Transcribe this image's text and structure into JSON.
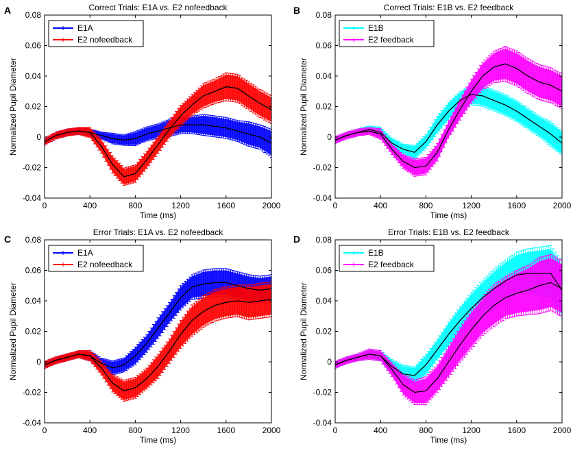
{
  "chart_data": [
    {
      "panel_label": "A",
      "type": "line",
      "title": "Correct Trials: E1A vs. E2 nofeedback",
      "xlabel": "Time (ms)",
      "ylabel": "Normalized Pupil Diameter",
      "xlim": [
        0,
        2000
      ],
      "ylim": [
        -0.04,
        0.08
      ],
      "xticks": [
        0,
        400,
        800,
        1200,
        1600,
        2000
      ],
      "xtick_labels": [
        "0",
        "400",
        "800",
        "1200",
        "1600",
        "2000"
      ],
      "yticks": [
        -0.04,
        -0.02,
        0,
        0.02,
        0.04,
        0.06,
        0.08
      ],
      "ytick_labels": [
        "-0.04",
        "-0.02",
        "0",
        "0.02",
        "0.04",
        "0.06",
        "0.08"
      ],
      "legend_position": "top-left",
      "x": [
        0,
        100,
        200,
        300,
        400,
        500,
        600,
        700,
        800,
        900,
        1000,
        1100,
        1200,
        1300,
        1400,
        1500,
        1600,
        1700,
        1800,
        1900,
        2000
      ],
      "series": [
        {
          "name": "E1A",
          "color": "#0000ff",
          "values": [
            -0.003,
            0.001,
            0.003,
            0.004,
            0.003,
            0.001,
            -0.001,
            -0.002,
            -0.001,
            0.002,
            0.004,
            0.006,
            0.008,
            0.008,
            0.008,
            0.007,
            0.006,
            0.004,
            0.002,
            0.0,
            -0.004
          ],
          "error": [
            0.002,
            0.002,
            0.002,
            0.002,
            0.002,
            0.002,
            0.003,
            0.003,
            0.004,
            0.004,
            0.004,
            0.005,
            0.005,
            0.005,
            0.006,
            0.006,
            0.006,
            0.006,
            0.007,
            0.007,
            0.008
          ]
        },
        {
          "name": "E2 nofeedback",
          "color": "#ff0000",
          "values": [
            -0.003,
            0.001,
            0.003,
            0.004,
            0.003,
            -0.006,
            -0.018,
            -0.026,
            -0.024,
            -0.015,
            -0.005,
            0.005,
            0.014,
            0.021,
            0.027,
            0.03,
            0.033,
            0.032,
            0.027,
            0.022,
            0.018
          ],
          "error": [
            0.002,
            0.002,
            0.002,
            0.002,
            0.003,
            0.004,
            0.005,
            0.005,
            0.005,
            0.005,
            0.005,
            0.005,
            0.006,
            0.006,
            0.007,
            0.007,
            0.008,
            0.008,
            0.008,
            0.008,
            0.008
          ]
        }
      ]
    },
    {
      "panel_label": "B",
      "type": "line",
      "title": "Correct Trials: E1B vs. E2 feedback",
      "xlabel": "Time (ms)",
      "ylabel": "Normalized Pupil Diameter",
      "xlim": [
        0,
        2000
      ],
      "ylim": [
        -0.04,
        0.08
      ],
      "xticks": [
        0,
        400,
        800,
        1200,
        1600,
        2000
      ],
      "xtick_labels": [
        "0",
        "400",
        "800",
        "1200",
        "1600",
        "2000"
      ],
      "yticks": [
        -0.04,
        -0.02,
        0,
        0.02,
        0.04,
        0.06,
        0.08
      ],
      "ytick_labels": [
        "-0.04",
        "-0.02",
        "0",
        "0.02",
        "0.04",
        "0.06",
        "0.08"
      ],
      "legend_position": "top-left",
      "x": [
        0,
        100,
        200,
        300,
        400,
        500,
        600,
        700,
        800,
        900,
        1000,
        1100,
        1200,
        1300,
        1400,
        1500,
        1600,
        1700,
        1800,
        1900,
        2000
      ],
      "series": [
        {
          "name": "E1B",
          "color": "#00ffff",
          "values": [
            -0.002,
            0.001,
            0.003,
            0.005,
            0.003,
            -0.004,
            -0.008,
            -0.01,
            -0.003,
            0.008,
            0.017,
            0.024,
            0.028,
            0.027,
            0.024,
            0.021,
            0.017,
            0.012,
            0.007,
            0.002,
            -0.004
          ],
          "error": [
            0.002,
            0.002,
            0.002,
            0.002,
            0.003,
            0.003,
            0.003,
            0.004,
            0.004,
            0.005,
            0.005,
            0.005,
            0.006,
            0.006,
            0.006,
            0.006,
            0.006,
            0.006,
            0.006,
            0.007,
            0.007
          ]
        },
        {
          "name": "E2 feedback",
          "color": "#ff00ff",
          "values": [
            -0.002,
            0.001,
            0.003,
            0.004,
            0.002,
            -0.008,
            -0.016,
            -0.02,
            -0.019,
            -0.01,
            0.005,
            0.018,
            0.03,
            0.04,
            0.046,
            0.048,
            0.045,
            0.04,
            0.036,
            0.034,
            0.03
          ],
          "error": [
            0.002,
            0.002,
            0.002,
            0.002,
            0.003,
            0.003,
            0.004,
            0.005,
            0.005,
            0.005,
            0.005,
            0.006,
            0.007,
            0.008,
            0.009,
            0.01,
            0.01,
            0.01,
            0.01,
            0.01,
            0.01
          ]
        }
      ]
    },
    {
      "panel_label": "C",
      "type": "line",
      "title": "Error Trials: E1A vs. E2 nofeedback",
      "xlabel": "Time (ms)",
      "ylabel": "Normalized Pupil Diameter",
      "xlim": [
        0,
        2000
      ],
      "ylim": [
        -0.04,
        0.08
      ],
      "xticks": [
        0,
        400,
        800,
        1200,
        1600,
        2000
      ],
      "xtick_labels": [
        "0",
        "400",
        "800",
        "1200",
        "1600",
        "2000"
      ],
      "yticks": [
        -0.04,
        -0.02,
        0,
        0.02,
        0.04,
        0.06,
        0.08
      ],
      "ytick_labels": [
        "-0.04",
        "-0.02",
        "0",
        "0.02",
        "0.04",
        "0.06",
        "0.08"
      ],
      "legend_position": "top-left",
      "x": [
        0,
        100,
        200,
        300,
        400,
        500,
        600,
        700,
        800,
        900,
        1000,
        1100,
        1200,
        1300,
        1400,
        1500,
        1600,
        1700,
        1800,
        1900,
        2000
      ],
      "series": [
        {
          "name": "E1A",
          "color": "#0000ff",
          "values": [
            -0.002,
            0.001,
            0.003,
            0.005,
            0.004,
            -0.001,
            -0.004,
            -0.002,
            0.004,
            0.012,
            0.022,
            0.032,
            0.042,
            0.049,
            0.051,
            0.052,
            0.052,
            0.05,
            0.048,
            0.047,
            0.048
          ],
          "error": [
            0.002,
            0.002,
            0.002,
            0.002,
            0.003,
            0.003,
            0.004,
            0.004,
            0.005,
            0.005,
            0.006,
            0.006,
            0.007,
            0.007,
            0.008,
            0.008,
            0.008,
            0.008,
            0.008,
            0.008,
            0.008
          ]
        },
        {
          "name": "E2 nofeedback",
          "color": "#ff0000",
          "values": [
            -0.002,
            0.001,
            0.003,
            0.005,
            0.004,
            -0.004,
            -0.014,
            -0.019,
            -0.017,
            -0.011,
            -0.003,
            0.007,
            0.018,
            0.027,
            0.033,
            0.037,
            0.039,
            0.04,
            0.039,
            0.04,
            0.041
          ],
          "error": [
            0.002,
            0.002,
            0.002,
            0.002,
            0.003,
            0.004,
            0.005,
            0.006,
            0.006,
            0.006,
            0.007,
            0.007,
            0.008,
            0.009,
            0.009,
            0.009,
            0.009,
            0.009,
            0.01,
            0.01,
            0.01
          ]
        }
      ]
    },
    {
      "panel_label": "D",
      "type": "line",
      "title": "Error Trials: E1B vs. E2 feedback",
      "xlabel": "Time (ms)",
      "ylabel": "Normalized Pupil Diameter",
      "xlim": [
        0,
        2000
      ],
      "ylim": [
        -0.04,
        0.08
      ],
      "xticks": [
        0,
        400,
        800,
        1200,
        1600,
        2000
      ],
      "xtick_labels": [
        "0",
        "400",
        "800",
        "1200",
        "1600",
        "2000"
      ],
      "yticks": [
        -0.04,
        -0.02,
        0,
        0.02,
        0.04,
        0.06,
        0.08
      ],
      "ytick_labels": [
        "-0.04",
        "-0.02",
        "0",
        "0.02",
        "0.04",
        "0.06",
        "0.08"
      ],
      "legend_position": "top-left",
      "x": [
        0,
        100,
        200,
        300,
        400,
        500,
        600,
        700,
        800,
        900,
        1000,
        1100,
        1200,
        1300,
        1400,
        1500,
        1600,
        1700,
        1800,
        1900,
        2000
      ],
      "series": [
        {
          "name": "E1B",
          "color": "#00ffff",
          "values": [
            -0.002,
            0.001,
            0.003,
            0.005,
            0.004,
            -0.003,
            -0.008,
            -0.009,
            -0.002,
            0.008,
            0.018,
            0.027,
            0.035,
            0.042,
            0.048,
            0.053,
            0.057,
            0.058,
            0.058,
            0.058,
            0.047
          ],
          "error": [
            0.002,
            0.002,
            0.002,
            0.003,
            0.003,
            0.004,
            0.005,
            0.005,
            0.006,
            0.006,
            0.007,
            0.008,
            0.009,
            0.01,
            0.011,
            0.012,
            0.013,
            0.014,
            0.015,
            0.016,
            0.016
          ]
        },
        {
          "name": "E2 feedback",
          "color": "#ff00ff",
          "values": [
            -0.002,
            0.001,
            0.003,
            0.005,
            0.004,
            -0.005,
            -0.015,
            -0.02,
            -0.019,
            -0.011,
            0.0,
            0.011,
            0.021,
            0.03,
            0.037,
            0.042,
            0.045,
            0.047,
            0.05,
            0.052,
            0.048
          ],
          "error": [
            0.002,
            0.002,
            0.002,
            0.003,
            0.003,
            0.004,
            0.006,
            0.007,
            0.008,
            0.008,
            0.009,
            0.01,
            0.011,
            0.011,
            0.012,
            0.012,
            0.013,
            0.014,
            0.016,
            0.016,
            0.016
          ]
        }
      ]
    }
  ]
}
